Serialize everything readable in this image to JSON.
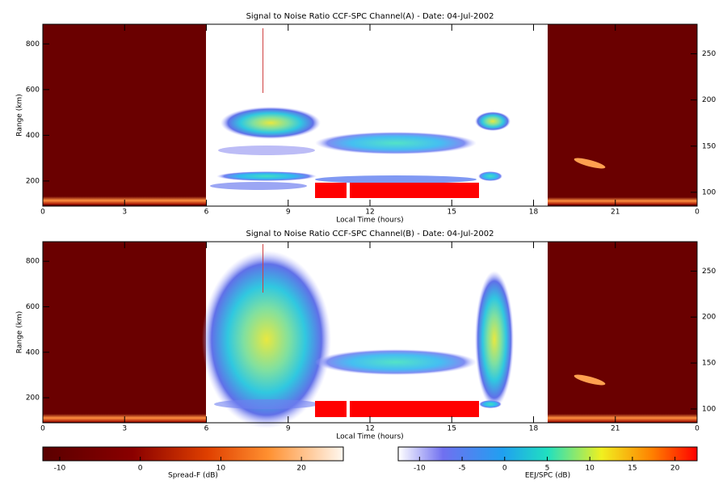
{
  "chart_data": [
    {
      "type": "heatmap",
      "title": "Signal to Noise Ratio CCF-SPC Channel(A) - Date: 04-Jul-2002",
      "xlabel": "Local Time (hours)",
      "ylabel": "Range (km)",
      "xlim": [
        0,
        24
      ],
      "xticks": [
        0,
        3,
        6,
        9,
        12,
        15,
        18,
        21,
        {
          "value": 24,
          "label": "0"
        }
      ],
      "ylim": [
        90,
        886
      ],
      "yticks": [
        200,
        400,
        600,
        800
      ],
      "y2lim": [
        85,
        282
      ],
      "y2ticks": [
        100,
        150,
        200,
        250
      ]
    },
    {
      "type": "heatmap",
      "title": "Signal to Noise Ratio CCF-SPC Channel(B) - Date: 04-Jul-2002",
      "xlabel": "Local Time (hours)",
      "ylabel": "Range (km)",
      "xlim": [
        0,
        24
      ],
      "xticks": [
        0,
        3,
        6,
        9,
        12,
        15,
        18,
        21,
        {
          "value": 24,
          "label": "0"
        }
      ],
      "ylim": [
        90,
        886
      ],
      "yticks": [
        200,
        400,
        600,
        800
      ],
      "y2lim": [
        85,
        282
      ],
      "y2ticks": [
        100,
        150,
        200,
        250
      ]
    }
  ],
  "colorbars": [
    {
      "label": "Spread-F (dB)",
      "lim": [
        -12.1,
        25.2
      ],
      "ticks": [
        -10,
        0,
        10,
        20
      ]
    },
    {
      "label": "EEJ/SPC (dB)",
      "lim": [
        -12.5,
        22.6
      ],
      "ticks": [
        -10,
        -5,
        0,
        5,
        10,
        15,
        20
      ]
    }
  ]
}
